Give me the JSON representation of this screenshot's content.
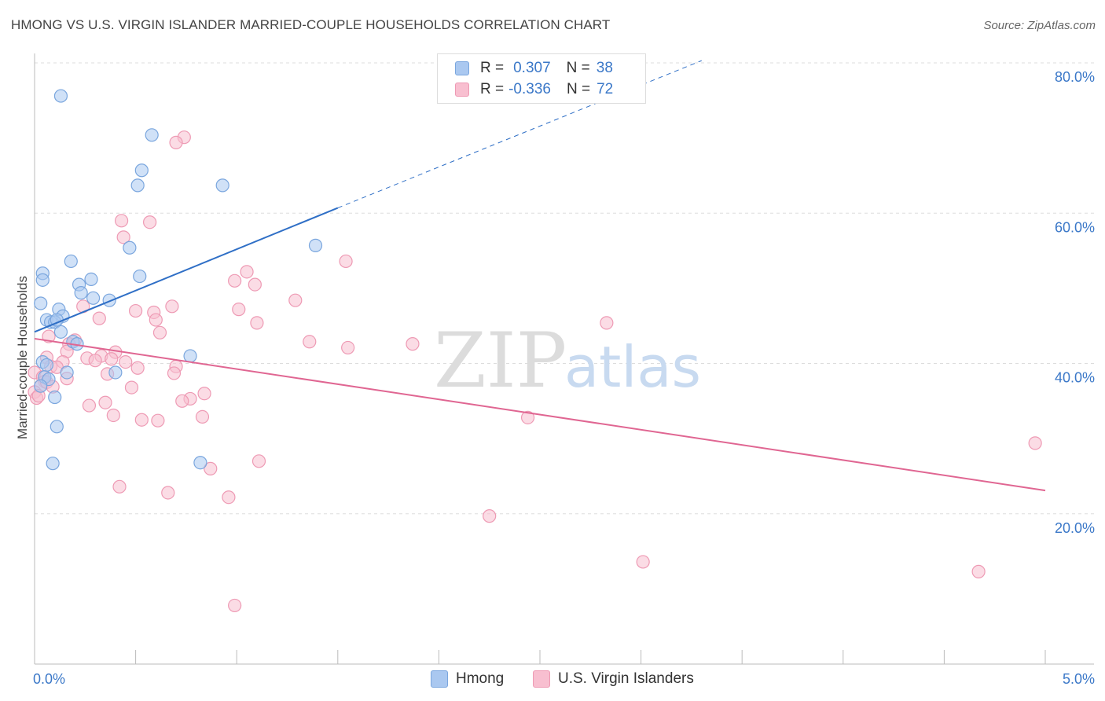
{
  "title": "HMONG VS U.S. VIRGIN ISLANDER MARRIED-COUPLE HOUSEHOLDS CORRELATION CHART",
  "source": "Source: ZipAtlas.com",
  "watermark": {
    "zip": "ZIP",
    "atlas": "atlas"
  },
  "legend": {
    "rows": [
      {
        "r_label": "R =",
        "r_value": "0.307",
        "n_label": "N =",
        "n_value": "38"
      },
      {
        "r_label": "R =",
        "r_value": "-0.336",
        "n_label": "N =",
        "n_value": "72"
      }
    ]
  },
  "bottom_legend": {
    "hmong": "Hmong",
    "usvi": "U.S. Virgin Islanders"
  },
  "colors": {
    "hmong_fill": "#aac8f0",
    "hmong_stroke": "#7aa6de",
    "hmong_line": "#2f6fc6",
    "usvi_fill": "#f8bfd0",
    "usvi_stroke": "#ee9ab4",
    "usvi_line": "#e06692",
    "tick_label": "#3b78c8",
    "grid": "#dddddd"
  },
  "chart_data": {
    "type": "scatter",
    "title": "HMONG VS U.S. VIRGIN ISLANDER MARRIED-COUPLE HOUSEHOLDS CORRELATION CHART",
    "xlabel": "",
    "ylabel": "Married-couple Households",
    "xlim": [
      0,
      5
    ],
    "ylim": [
      0,
      80
    ],
    "x_tick_labels": [
      {
        "value": 0,
        "label": "0.0%"
      },
      {
        "value": 5,
        "label": "5.0%"
      }
    ],
    "y_tick_labels": [
      {
        "value": 20,
        "label": "20.0%"
      },
      {
        "value": 40,
        "label": "40.0%"
      },
      {
        "value": 60,
        "label": "60.0%"
      },
      {
        "value": 80,
        "label": "80.0%"
      }
    ],
    "series": [
      {
        "name": "Hmong",
        "R": 0.307,
        "N": 38,
        "trend": {
          "x0": 0.0,
          "y0": 44.2,
          "x1": 1.5,
          "y1": 60.7,
          "dash_to_x": 3.3,
          "dash_to_y": 80.3
        },
        "points": [
          [
            0.13,
            75.6
          ],
          [
            0.58,
            70.4
          ],
          [
            0.53,
            65.7
          ],
          [
            0.51,
            63.7
          ],
          [
            0.93,
            63.7
          ],
          [
            0.47,
            55.4
          ],
          [
            1.39,
            55.7
          ],
          [
            0.18,
            53.6
          ],
          [
            0.04,
            52.0
          ],
          [
            0.04,
            51.1
          ],
          [
            0.28,
            51.2
          ],
          [
            0.52,
            51.6
          ],
          [
            0.22,
            50.5
          ],
          [
            0.23,
            49.4
          ],
          [
            0.29,
            48.7
          ],
          [
            0.37,
            48.4
          ],
          [
            0.03,
            48.0
          ],
          [
            0.12,
            47.2
          ],
          [
            0.14,
            46.3
          ],
          [
            0.06,
            45.8
          ],
          [
            0.08,
            45.5
          ],
          [
            0.1,
            45.5
          ],
          [
            0.11,
            45.8
          ],
          [
            0.13,
            44.2
          ],
          [
            0.19,
            42.9
          ],
          [
            0.21,
            42.6
          ],
          [
            0.77,
            41.0
          ],
          [
            0.04,
            40.2
          ],
          [
            0.06,
            39.8
          ],
          [
            0.4,
            38.8
          ],
          [
            0.16,
            38.8
          ],
          [
            0.05,
            38.2
          ],
          [
            0.07,
            37.9
          ],
          [
            0.03,
            37.0
          ],
          [
            0.1,
            35.5
          ],
          [
            0.11,
            31.6
          ],
          [
            0.09,
            26.7
          ],
          [
            0.82,
            26.8
          ]
        ]
      },
      {
        "name": "U.S. Virgin Islanders",
        "R": -0.336,
        "N": 72,
        "trend": {
          "x0": 0.0,
          "y0": 43.3,
          "x1": 5.0,
          "y1": 23.1
        },
        "points": [
          [
            0.74,
            70.1
          ],
          [
            0.7,
            69.4
          ],
          [
            0.43,
            59.0
          ],
          [
            0.57,
            58.8
          ],
          [
            0.44,
            56.8
          ],
          [
            1.54,
            53.6
          ],
          [
            1.05,
            52.2
          ],
          [
            0.99,
            51.0
          ],
          [
            1.09,
            50.5
          ],
          [
            1.29,
            48.4
          ],
          [
            0.68,
            47.6
          ],
          [
            0.24,
            47.6
          ],
          [
            1.01,
            47.2
          ],
          [
            0.5,
            47.0
          ],
          [
            0.59,
            46.8
          ],
          [
            0.32,
            46.0
          ],
          [
            0.6,
            45.8
          ],
          [
            1.1,
            45.4
          ],
          [
            2.83,
            45.4
          ],
          [
            0.62,
            44.1
          ],
          [
            0.07,
            43.6
          ],
          [
            0.2,
            43.1
          ],
          [
            0.17,
            42.6
          ],
          [
            1.36,
            42.9
          ],
          [
            1.87,
            42.6
          ],
          [
            1.55,
            42.1
          ],
          [
            0.16,
            41.6
          ],
          [
            0.4,
            41.5
          ],
          [
            0.33,
            41.0
          ],
          [
            0.06,
            40.8
          ],
          [
            0.26,
            40.7
          ],
          [
            0.38,
            40.6
          ],
          [
            0.3,
            40.4
          ],
          [
            0.14,
            40.2
          ],
          [
            0.08,
            39.6
          ],
          [
            0.7,
            39.6
          ],
          [
            0.11,
            39.5
          ],
          [
            0.51,
            39.4
          ],
          [
            0.45,
            40.2
          ],
          [
            0.0,
            38.8
          ],
          [
            0.36,
            38.6
          ],
          [
            0.69,
            38.7
          ],
          [
            0.04,
            38.2
          ],
          [
            0.16,
            38.0
          ],
          [
            0.05,
            37.6
          ],
          [
            0.03,
            37.0
          ],
          [
            0.48,
            36.8
          ],
          [
            0.0,
            36.2
          ],
          [
            0.84,
            36.0
          ],
          [
            0.01,
            35.4
          ],
          [
            0.77,
            35.3
          ],
          [
            0.73,
            35.0
          ],
          [
            0.35,
            34.8
          ],
          [
            0.27,
            34.4
          ],
          [
            0.39,
            33.1
          ],
          [
            0.83,
            32.9
          ],
          [
            2.44,
            32.8
          ],
          [
            0.53,
            32.5
          ],
          [
            0.61,
            32.4
          ],
          [
            4.95,
            29.4
          ],
          [
            1.11,
            27.0
          ],
          [
            0.87,
            26.0
          ],
          [
            0.42,
            23.6
          ],
          [
            0.66,
            22.8
          ],
          [
            0.96,
            22.2
          ],
          [
            2.25,
            19.7
          ],
          [
            3.01,
            13.6
          ],
          [
            4.67,
            12.3
          ],
          [
            0.99,
            7.8
          ],
          [
            0.06,
            37.5
          ],
          [
            0.02,
            35.7
          ],
          [
            0.09,
            36.9
          ]
        ]
      }
    ]
  }
}
